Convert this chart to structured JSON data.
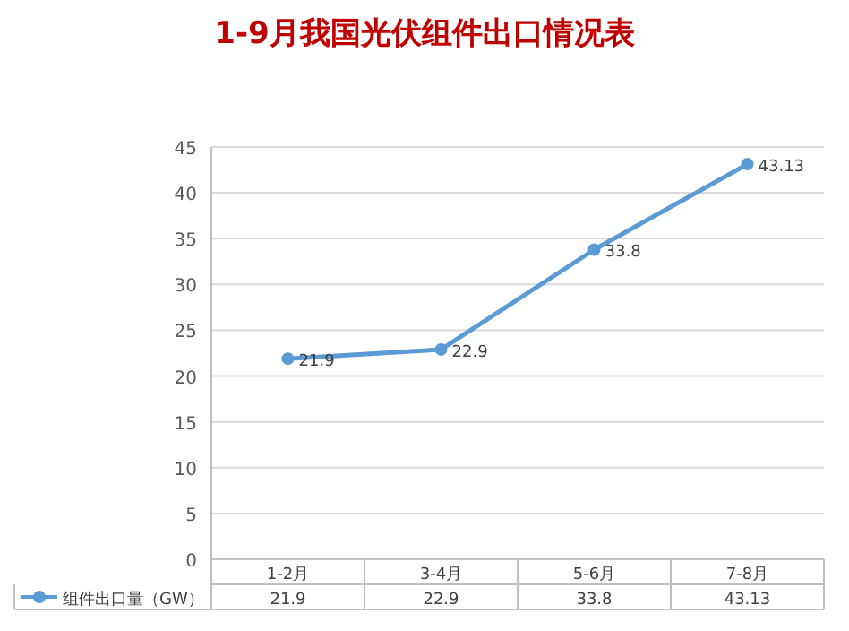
{
  "chart_data": {
    "type": "line",
    "title": "1-9月我国光伏组件出口情况表",
    "categories": [
      "1-2月",
      "3-4月",
      "5-6月",
      "7-8月"
    ],
    "series": [
      {
        "name": "组件出口量（GW）",
        "color": "#5b9bd5",
        "values": [
          21.9,
          22.9,
          33.8,
          43.13
        ],
        "value_labels": [
          "21.9",
          "22.9",
          "33.8",
          "43.13"
        ]
      }
    ],
    "ylim": [
      0,
      45
    ],
    "yticks": [
      0,
      5,
      10,
      15,
      20,
      25,
      30,
      35,
      40,
      45
    ],
    "annotations": [
      "21.9",
      "22.9",
      "33.8",
      "43.13"
    ],
    "grid": "y",
    "marker": "circle",
    "data_labels": true
  }
}
